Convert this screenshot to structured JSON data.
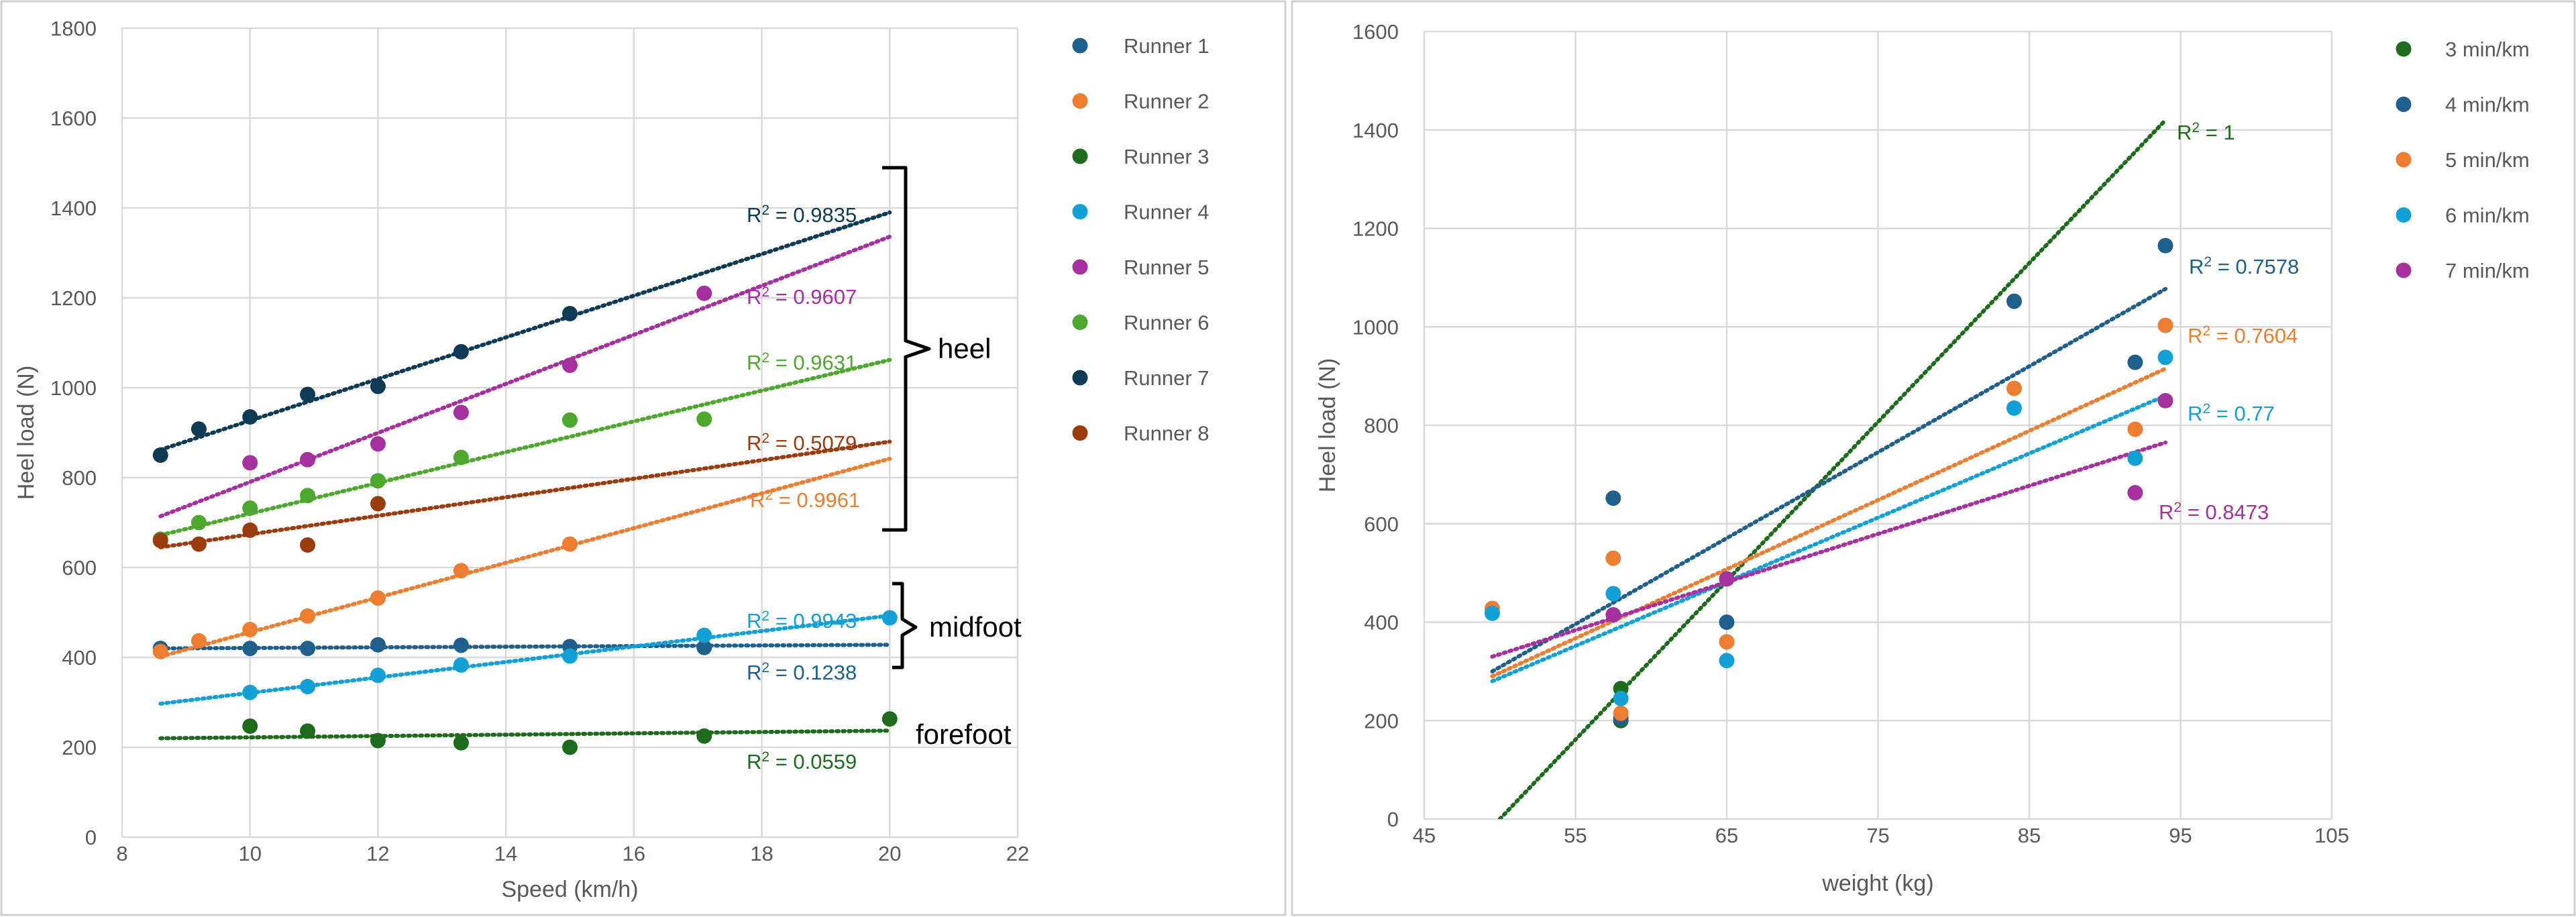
{
  "chart_data": [
    {
      "type": "scatter",
      "xlabel": "Speed (km/h)",
      "ylabel": "Heel load (N)",
      "xlim": [
        8,
        22
      ],
      "ylim": [
        0,
        1800
      ],
      "xticks": [
        8,
        10,
        12,
        14,
        16,
        18,
        20,
        22
      ],
      "yticks": [
        0,
        200,
        400,
        600,
        800,
        1000,
        1200,
        1400,
        1600,
        1800
      ],
      "grid": true,
      "legend_position": "right",
      "series": [
        {
          "name": "Runner 1",
          "color": "#1f5f8b",
          "x": [
            8.6,
            10,
            10.9,
            12,
            13.3,
            15,
            17.1
          ],
          "y": [
            420,
            420,
            420,
            428,
            427,
            424,
            422
          ],
          "trend": {
            "x": [
              8.6,
              20
            ],
            "y": [
              420,
              428
            ]
          },
          "r2": "R² = 0.1238"
        },
        {
          "name": "Runner 2",
          "color": "#ed7d31",
          "x": [
            8.6,
            9.2,
            10,
            10.9,
            12,
            13.3,
            15
          ],
          "y": [
            413,
            437,
            462,
            492,
            532,
            593,
            652
          ],
          "trend": {
            "x": [
              8.6,
              20
            ],
            "y": [
              402,
              842
            ]
          },
          "r2": "R² = 0.9961"
        },
        {
          "name": "Runner 3",
          "color": "#1e6b1e",
          "x": [
            10,
            10.9,
            12,
            13.3,
            15,
            17.1,
            20
          ],
          "y": [
            247,
            236,
            215,
            210,
            200,
            225,
            263
          ],
          "trend": {
            "x": [
              8.6,
              20
            ],
            "y": [
              220,
              237
            ]
          },
          "r2": "R² = 0.0559"
        },
        {
          "name": "Runner 4",
          "color": "#12a0d6",
          "x": [
            10,
            10.9,
            12,
            13.3,
            15,
            17.1,
            20
          ],
          "y": [
            322,
            335,
            360,
            383,
            403,
            449,
            488
          ],
          "trend": {
            "x": [
              8.6,
              20
            ],
            "y": [
              297,
              493
            ]
          },
          "r2": "R² = 0.9943"
        },
        {
          "name": "Runner 5",
          "color": "#a5309e",
          "x": [
            10,
            10.9,
            12,
            13.3,
            15,
            17.1
          ],
          "y": [
            833,
            840,
            875,
            945,
            1050,
            1210
          ],
          "trend": {
            "x": [
              8.6,
              20
            ],
            "y": [
              714,
              1336
            ]
          },
          "r2": "R² = 0.9607"
        },
        {
          "name": "Runner 6",
          "color": "#4ea72e",
          "x": [
            8.6,
            9.2,
            10,
            10.9,
            12,
            13.3,
            15,
            17.1
          ],
          "y": [
            663,
            700,
            732,
            760,
            793,
            845,
            928,
            930
          ],
          "trend": {
            "x": [
              8.6,
              20
            ],
            "y": [
              672,
              1062
            ]
          },
          "r2": "R² = 0.9631"
        },
        {
          "name": "Runner 7",
          "color": "#0e3a55",
          "x": [
            8.6,
            9.2,
            10,
            10.9,
            12,
            13.3,
            15
          ],
          "y": [
            850,
            908,
            935,
            985,
            1003,
            1080,
            1165
          ],
          "trend": {
            "x": [
              8.6,
              20
            ],
            "y": [
              862,
              1390
            ]
          },
          "r2": "R² = 0.9835"
        },
        {
          "name": "Runner 8",
          "color": "#9b3c0f",
          "x": [
            8.6,
            9.2,
            10,
            10.9,
            12
          ],
          "y": [
            660,
            652,
            683,
            650,
            742
          ],
          "trend": {
            "x": [
              8.6,
              20
            ],
            "y": [
              645,
              880
            ]
          },
          "r2": "R² = 0.5079"
        }
      ],
      "annotations": [
        {
          "text": "heel",
          "y_range": [
            690,
            1390
          ]
        },
        {
          "text": "midfoot",
          "y_range": [
            385,
            565
          ]
        },
        {
          "text": "forefoot"
        }
      ]
    },
    {
      "type": "scatter",
      "xlabel": "weight (kg)",
      "ylabel": "Heel load (N)",
      "xlim": [
        45,
        105
      ],
      "ylim": [
        0,
        1600
      ],
      "xticks": [
        45,
        55,
        65,
        75,
        85,
        95,
        105
      ],
      "yticks": [
        0,
        200,
        400,
        600,
        800,
        1000,
        1200,
        1400,
        1600
      ],
      "grid": true,
      "legend_position": "right",
      "series": [
        {
          "name": "3 min/km",
          "color": "#1e6b1e",
          "x": [
            58,
            58,
            65
          ],
          "y": [
            265,
            200,
            488
          ],
          "trend": {
            "x": [
              50,
              94
            ],
            "y": [
              0,
              1420
            ]
          },
          "r2": "R² = 1"
        },
        {
          "name": "4 min/km",
          "color": "#1f5f8b",
          "x": [
            57.5,
            58,
            65,
            84,
            92,
            94
          ],
          "y": [
            652,
            205,
            400,
            1052,
            928,
            1165
          ],
          "trend": {
            "x": [
              49.5,
              94
            ],
            "y": [
              300,
              1077
            ]
          },
          "r2": "R² = 0.7578"
        },
        {
          "name": "5 min/km",
          "color": "#ed7d31",
          "x": [
            49.5,
            57.5,
            58,
            65,
            84,
            92,
            94
          ],
          "y": [
            428,
            530,
            215,
            360,
            875,
            792,
            1003
          ],
          "trend": {
            "x": [
              49.5,
              94
            ],
            "y": [
              290,
              915
            ]
          },
          "r2": "R² = 0.7604"
        },
        {
          "name": "6 min/km",
          "color": "#12a0d6",
          "x": [
            49.5,
            57.5,
            58,
            65,
            84,
            92,
            94
          ],
          "y": [
            418,
            458,
            245,
            322,
            835,
            733,
            938
          ],
          "trend": {
            "x": [
              49.5,
              94
            ],
            "y": [
              280,
              860
            ]
          },
          "r2": "R² = 0.77"
        },
        {
          "name": "7 min/km",
          "color": "#a5309e",
          "x": [
            57.5,
            65,
            92,
            94
          ],
          "y": [
            415,
            488,
            663,
            850
          ],
          "trend": {
            "x": [
              49.5,
              94
            ],
            "y": [
              330,
              765
            ]
          },
          "r2": "R² = 0.8473"
        }
      ]
    }
  ]
}
